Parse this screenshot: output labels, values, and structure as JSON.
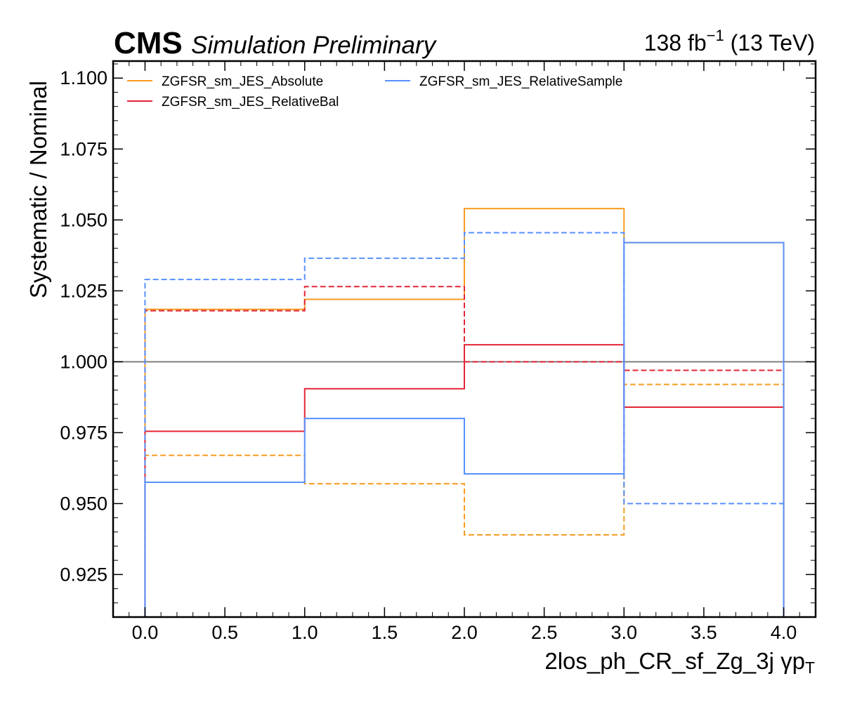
{
  "header": {
    "experiment": "CMS",
    "status": "Simulation Preliminary",
    "lumi_value": "138 fb",
    "lumi_exp": "−1",
    "energy": " (13 TeV)"
  },
  "chart_data": {
    "type": "line",
    "step": true,
    "x_edges": [
      0,
      1,
      2,
      3,
      4
    ],
    "xlabel": "2los_ph_CR_sf_Zg_3j   γp",
    "xlabel_sub": "T",
    "ylabel": "Systematic / Nominal",
    "xlim": [
      -0.2,
      4.2
    ],
    "ylim": [
      0.91,
      1.106
    ],
    "xticks": [
      0.0,
      0.5,
      1.0,
      1.5,
      2.0,
      2.5,
      3.0,
      3.5,
      4.0
    ],
    "xtick_labels": [
      "0.0",
      "0.5",
      "1.0",
      "1.5",
      "2.0",
      "2.5",
      "3.0",
      "3.5",
      "4.0"
    ],
    "yticks": [
      0.925,
      0.95,
      0.975,
      1.0,
      1.025,
      1.05,
      1.075,
      1.1
    ],
    "ytick_labels": [
      "0.925",
      "0.950",
      "0.975",
      "1.000",
      "1.025",
      "1.050",
      "1.075",
      "1.100"
    ],
    "reference_line": 1.0,
    "reference_color": "#808080",
    "grid": false,
    "legend_position": "top-left",
    "legend": [
      {
        "name": "ZGFSR_sm_JES_Absolute",
        "color": "#f89c20"
      },
      {
        "name": "ZGFSR_sm_JES_RelativeBal",
        "color": "#e42536"
      },
      {
        "name": "ZGFSR_sm_JES_RelativeSample",
        "color": "#5790fc"
      }
    ],
    "series": [
      {
        "legend_index": 0,
        "variation": "up",
        "style": "solid",
        "values": [
          1.0185,
          1.022,
          1.054,
          1.042
        ]
      },
      {
        "legend_index": 0,
        "variation": "down",
        "style": "dashed",
        "values": [
          0.967,
          0.957,
          0.939,
          0.992
        ]
      },
      {
        "legend_index": 1,
        "variation": "up",
        "style": "dashed",
        "values": [
          1.018,
          1.0265,
          1.0,
          0.997
        ]
      },
      {
        "legend_index": 1,
        "variation": "down",
        "style": "solid",
        "values": [
          0.9755,
          0.9905,
          1.006,
          0.984
        ]
      },
      {
        "legend_index": 2,
        "variation": "up",
        "style": "dashed",
        "values": [
          1.029,
          1.0365,
          1.0455,
          0.95
        ]
      },
      {
        "legend_index": 2,
        "variation": "down",
        "style": "solid",
        "values": [
          0.9575,
          0.98,
          0.9605,
          1.042
        ]
      }
    ]
  }
}
